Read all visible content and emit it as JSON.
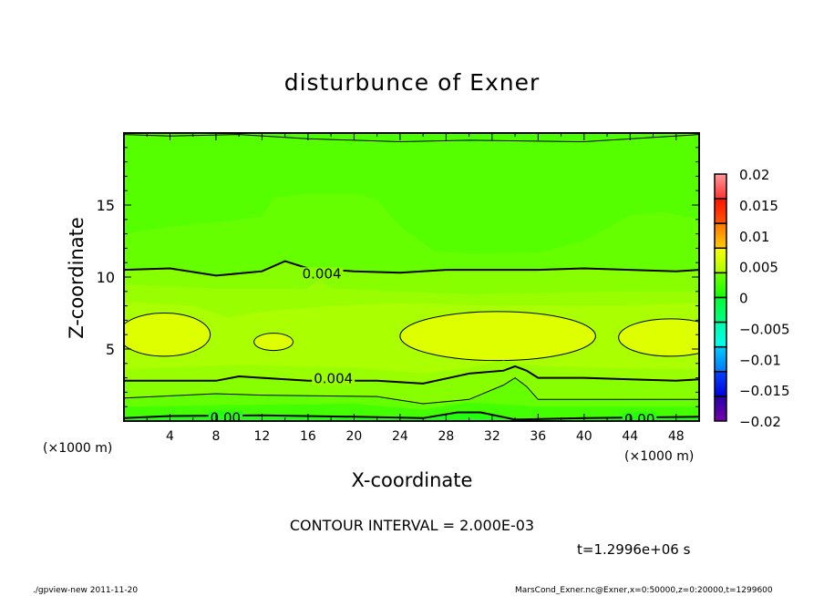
{
  "title": "disturbunce of Exner",
  "footer": {
    "left": "./gpview-new  2011-11-20",
    "right": "MarsCond_Exner.nc@Exner,x=0:50000,z=0:20000,t=1299600"
  },
  "contour_interval_text": "CONTOUR INTERVAL = 2.000E-03",
  "time_text": "t=1.2996e+06 s",
  "chart_data": {
    "type": "heatmap",
    "subtype": "filled contour",
    "title": "disturbunce of Exner",
    "xlabel": "X-coordinate",
    "ylabel": "Z-coordinate",
    "x_unit": "(×1000 m)",
    "xlim": [
      0,
      50
    ],
    "ylim": [
      0,
      20
    ],
    "x_ticks": [
      "4",
      "8",
      "12",
      "16",
      "20",
      "24",
      "28",
      "32",
      "36",
      "40",
      "44",
      "48"
    ],
    "y_ticks": [
      "5",
      "10",
      "15"
    ],
    "contour_interval": 0.002,
    "contour_labels": [
      "0.004",
      "0.004",
      "0.00",
      "0.00"
    ],
    "colorbar": {
      "range": [
        -0.02,
        0.02
      ],
      "ticks": [
        "0.02",
        "0.015",
        "0.01",
        "0.005",
        "0",
        "-0.005",
        "-0.01",
        "-0.015",
        "-0.02"
      ],
      "tick_values": [
        0.02,
        0.015,
        0.01,
        0.005,
        0,
        -0.005,
        -0.01,
        -0.015,
        -0.02
      ]
    },
    "field_summary": {
      "max_approx": 0.007,
      "max_regions_z": [
        4.5,
        7.5
      ],
      "min_near_surface": 0.0,
      "value_near_top": 0.002
    }
  }
}
